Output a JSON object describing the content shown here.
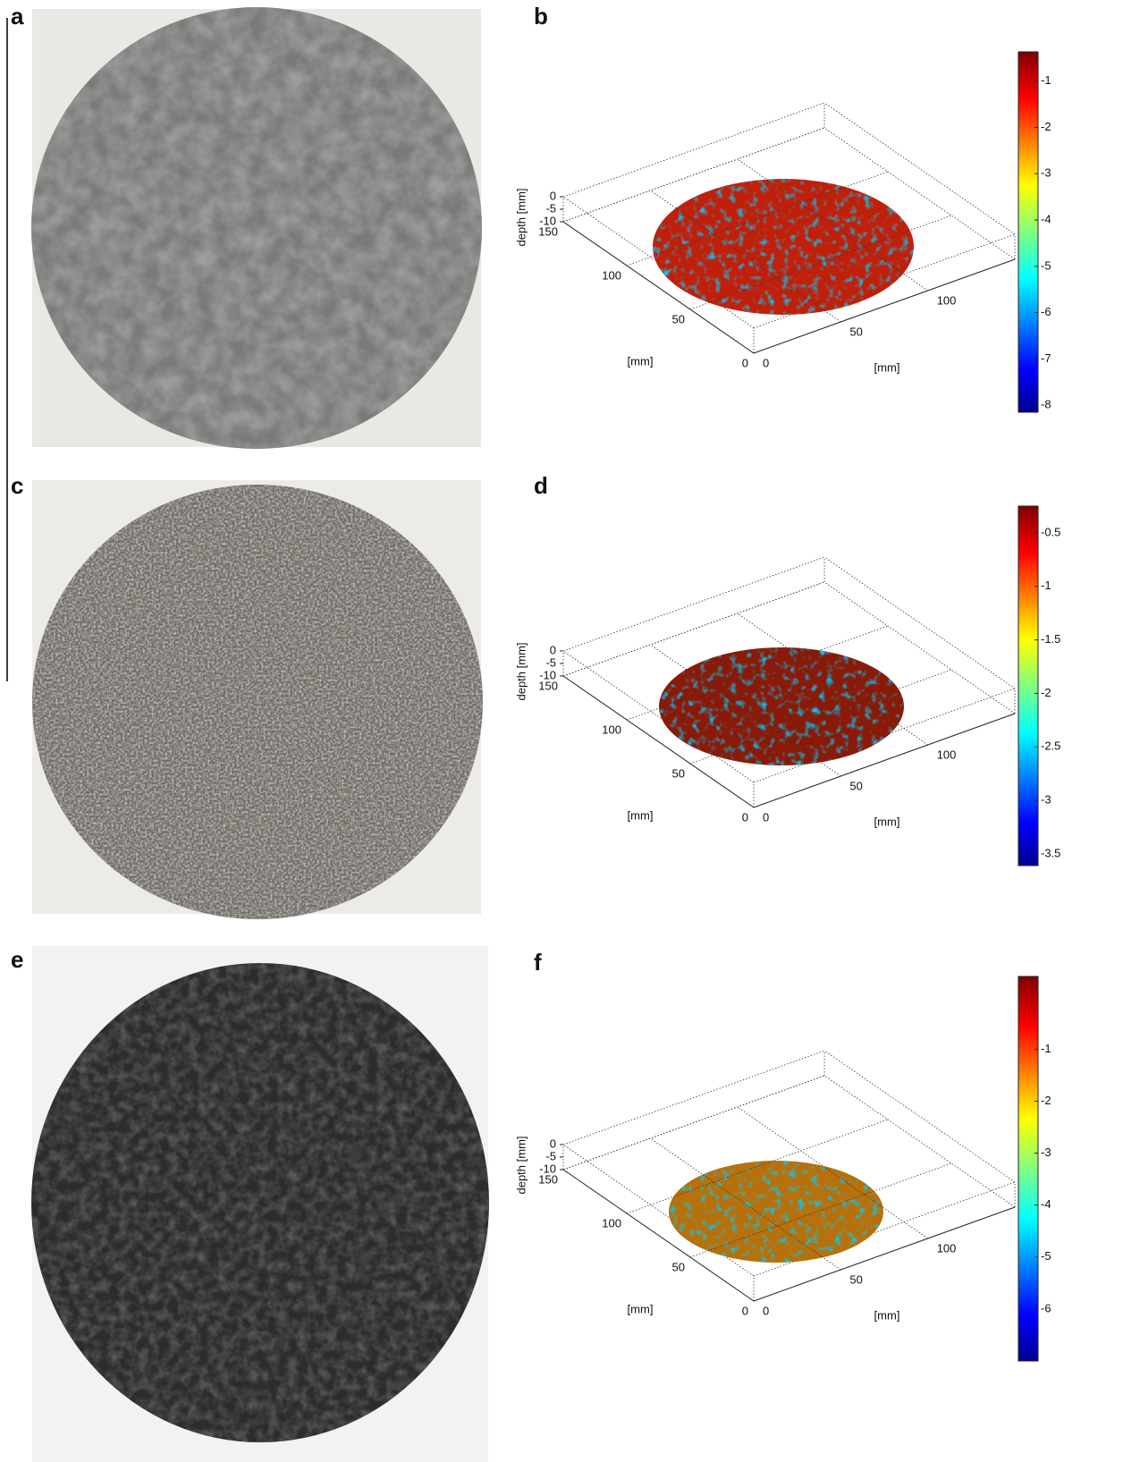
{
  "panels": [
    {
      "label": "a"
    },
    {
      "label": "b",
      "z_label": "depth [mm]",
      "x_label": "[mm]",
      "y_label": "[mm]",
      "xticks": [
        0,
        50,
        100
      ],
      "yticks": [
        0,
        50,
        100,
        150
      ],
      "zticks": [
        0,
        -5,
        -10
      ],
      "colorbar": {
        "lim": [
          -8.15,
          -0.37
        ],
        "ticks": [
          -1,
          -2,
          -3,
          -4,
          -5,
          -6,
          -7,
          -8
        ]
      }
    },
    {
      "label": "c"
    },
    {
      "label": "d",
      "z_label": "depth [mm]",
      "x_label": "[mm]",
      "y_label": "[mm]",
      "xticks": [
        0,
        50,
        100
      ],
      "yticks": [
        0,
        50,
        100,
        150
      ],
      "zticks": [
        0,
        -5,
        -10
      ],
      "colorbar": {
        "lim": [
          -3.61,
          -0.25
        ],
        "ticks": [
          -0.5,
          -1,
          -1.5,
          -2,
          -2.5,
          -3,
          -3.5
        ]
      }
    },
    {
      "label": "e"
    },
    {
      "label": "f",
      "z_label": "depth [mm]",
      "x_label": "[mm]",
      "y_label": "[mm]",
      "xticks": [
        0,
        50,
        100
      ],
      "yticks": [
        0,
        50,
        100,
        150
      ],
      "zticks": [
        0,
        -5,
        -10
      ],
      "colorbar": {
        "lim": [
          -7,
          0.4
        ],
        "ticks": [
          -1,
          -2,
          -3,
          -4,
          -5,
          -6
        ]
      }
    }
  ]
}
